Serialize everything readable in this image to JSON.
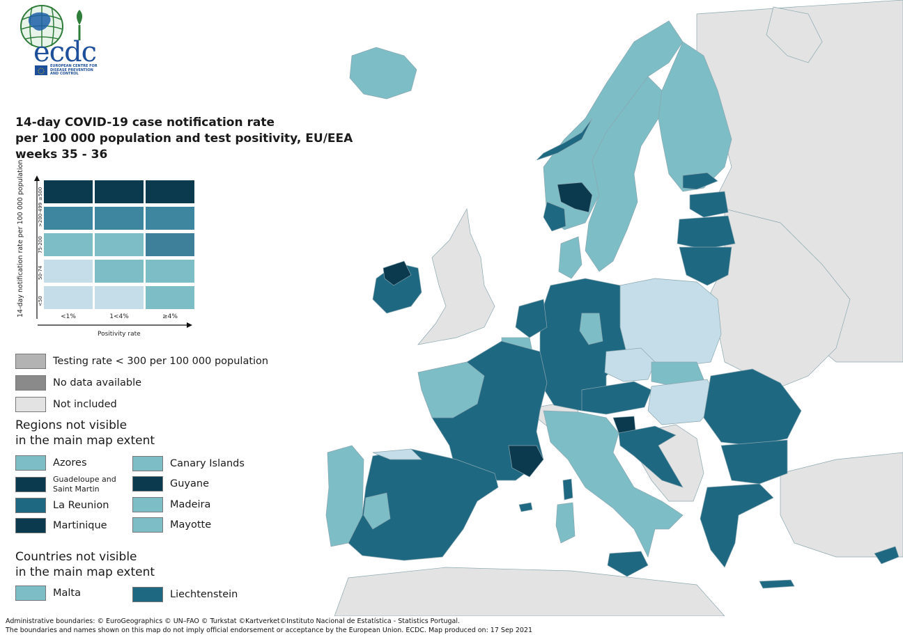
{
  "logo": {
    "brand": "ecdc",
    "org_lines": [
      "EUROPEAN CENTRE FOR",
      "DISEASE PREVENTION",
      "AND CONTROL"
    ]
  },
  "title": {
    "line1": "14-day COVID-19 case notification rate",
    "line2": "per 100 000 population and test positivity, EU/EEA",
    "line3": "weeks 35 - 36"
  },
  "bivariate_legend": {
    "y_axis_title": "14-day notification rate per 100 000 population",
    "x_axis_title": "Positivity rate",
    "rows": [
      "≥500",
      ">200-499",
      "75-200",
      "50-74",
      "<50"
    ],
    "columns": [
      "<1%",
      "1<4%",
      "≥4%"
    ],
    "colors": [
      [
        "#0b3a4e",
        "#0b3a4e",
        "#0b3a4e"
      ],
      [
        "#3e86a0",
        "#3e86a0",
        "#3e86a0"
      ],
      [
        "#7dbdc6",
        "#7dbdc6",
        "#3e7f9a"
      ],
      [
        "#c5dde8",
        "#7dbdc6",
        "#7dbdc6"
      ],
      [
        "#c5dde8",
        "#c5dde8",
        "#7dbdc6"
      ]
    ]
  },
  "status_legend": [
    {
      "label": "Testing rate < 300 per 100 000 population",
      "color": "#b3b3b3"
    },
    {
      "label": "No data available",
      "color": "#8a8a8a"
    },
    {
      "label": "Not included",
      "color": "#e3e3e3"
    }
  ],
  "regions_section": {
    "title_line1": "Regions not visible",
    "title_line2": "in the main map extent",
    "left": [
      {
        "label": "Azores",
        "color": "#7dbdc6"
      },
      {
        "label": "Guadeloupe and Saint Martin",
        "color": "#0b3a4e"
      },
      {
        "label": "La Reunion",
        "color": "#1f6882"
      },
      {
        "label": "Martinique",
        "color": "#0b3a4e"
      }
    ],
    "right": [
      {
        "label": "Canary Islands",
        "color": "#7dbdc6"
      },
      {
        "label": "Guyane",
        "color": "#0b3a4e"
      },
      {
        "label": "Madeira",
        "color": "#7dbdc6"
      },
      {
        "label": "Mayotte",
        "color": "#7dbdc6"
      }
    ]
  },
  "countries_section": {
    "title_line1": "Countries not visible",
    "title_line2": "in the main map extent",
    "items": [
      {
        "label": "Malta",
        "color": "#7dbdc6"
      },
      {
        "label": "Liechtenstein",
        "color": "#1f6882"
      }
    ]
  },
  "footer": {
    "line1": "Administrative boundaries: © EuroGeographics © UN–FAO © Turkstat ©Kartverket©Instituto Nacional de Estatística - Statistics Portugal.",
    "line2": "The boundaries and names shown on this map do not imply official endorsement or acceptance by the European Union. ECDC. Map produced on: 17 Sep 2021"
  },
  "map_colors": {
    "not_included": "#e3e3e3",
    "light": "#c5dde8",
    "medium": "#7dbdc6",
    "dark": "#1f6882",
    "darkest": "#0b3a4e"
  }
}
